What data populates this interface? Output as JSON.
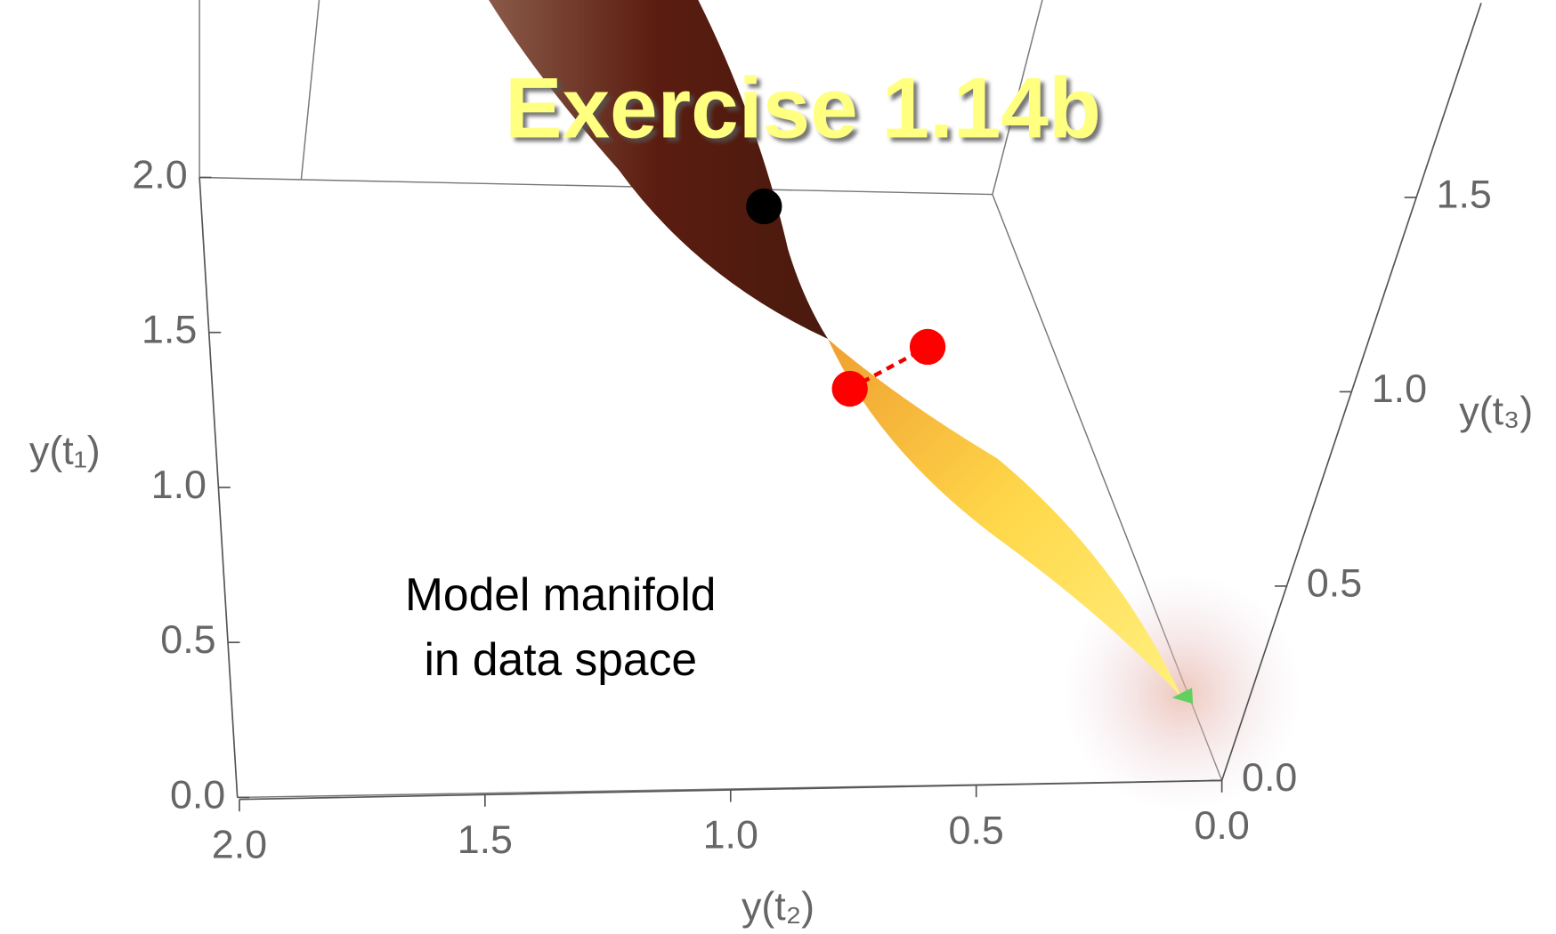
{
  "chart_data": {
    "type": "surface3d",
    "title": "Exercise 1.14b",
    "annotation": [
      "Model manifold",
      "in data space"
    ],
    "ylabel": "y(t₁)",
    "xlabel": "y(t₂)",
    "zlabel": "y(t₃)",
    "ylim": [
      0,
      2
    ],
    "yticks": [
      {
        "value": 0,
        "label": "0.0"
      },
      0.5,
      {
        "value": 1,
        "label": "1.0"
      },
      1.5,
      {
        "value": 2,
        "label": "2.0"
      }
    ],
    "xlim": [
      2,
      0
    ],
    "xticks": [
      {
        "value": 2,
        "label": "2.0"
      },
      1.5,
      {
        "value": 1,
        "label": "1.0"
      },
      0.5,
      {
        "value": 0,
        "label": "0.0"
      }
    ],
    "zlim": [
      0,
      2
    ],
    "zticks": [
      {
        "value": 0,
        "label": "0.0"
      },
      0.5,
      {
        "value": 1,
        "label": "1.0"
      },
      1.5
    ]
  }
}
